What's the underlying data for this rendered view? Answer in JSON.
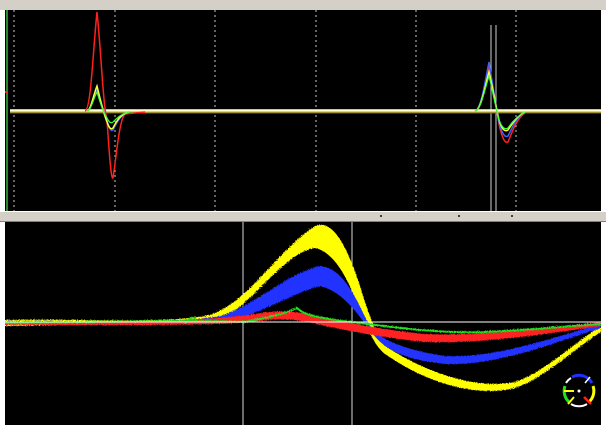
{
  "window": {
    "title": ""
  },
  "top_panel": {
    "label": "waveform-overview",
    "background": "#000000",
    "baseline_color": "#ffffff",
    "channel_colors": [
      "#ff2020",
      "#ffff40",
      "#4060ff",
      "#40ff40"
    ]
  },
  "bottom_panel": {
    "label": "spike-overlay-detail",
    "background": "#000000",
    "series_colors": {
      "yellow": "#ffff00",
      "blue": "#2030ff",
      "red": "#ff2020",
      "green": "#20e020"
    }
  },
  "compass": {
    "icon": "channel-selector-compass-icon",
    "colors": [
      "#ffff00",
      "#2030ff",
      "#ff2020",
      "#20e020"
    ]
  }
}
